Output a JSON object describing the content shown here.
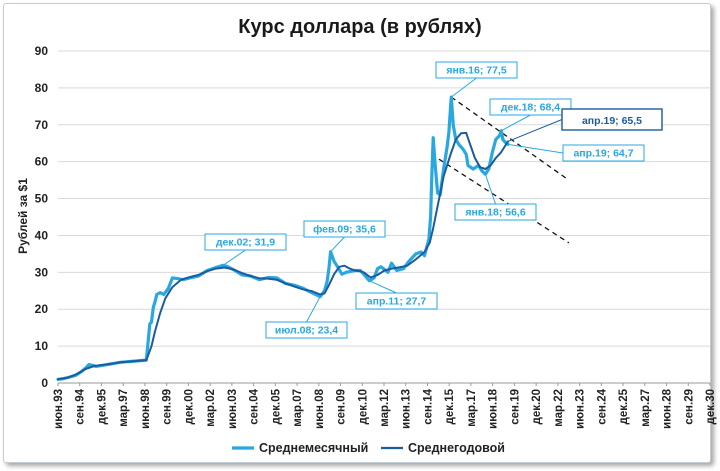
{
  "chart_data": {
    "type": "line",
    "title": "Курс доллара (в рублях)",
    "ylabel": "Рублей за $1",
    "xlabel": "",
    "ylim": [
      0,
      90
    ],
    "yticks": [
      "0",
      "10",
      "20",
      "30",
      "40",
      "50",
      "60",
      "70",
      "80",
      "90"
    ],
    "grid": "horizontal",
    "legend_placement": "bottom",
    "xticks": [
      "июн.93",
      "сен.94",
      "дек.95",
      "мар.97",
      "июн.98",
      "сен.99",
      "дек.00",
      "мар.02",
      "июн.03",
      "сен.04",
      "дек.05",
      "мар.07",
      "июн.08",
      "сен.09",
      "дек.10",
      "мар.12",
      "июн.13",
      "сен.14",
      "дек.15",
      "мар.17",
      "июн.18",
      "сен.19",
      "дек.20",
      "мар.22",
      "июн.23",
      "сен.24",
      "дек.25",
      "мар.27",
      "июн.28",
      "сен.29",
      "дек.30"
    ],
    "series": [
      {
        "name": "Среднемесячный",
        "color": "#29a8e0",
        "points": [
          [
            1993.42,
            1.0
          ],
          [
            1993.75,
            1.2
          ],
          [
            1994.0,
            1.5
          ],
          [
            1994.4,
            2.0
          ],
          [
            1994.75,
            3.0
          ],
          [
            1995.0,
            4.0
          ],
          [
            1995.2,
            5.0
          ],
          [
            1995.4,
            4.8
          ],
          [
            1995.6,
            4.5
          ],
          [
            1996.0,
            4.8
          ],
          [
            1996.5,
            5.2
          ],
          [
            1997.0,
            5.6
          ],
          [
            1997.5,
            5.8
          ],
          [
            1998.0,
            6.0
          ],
          [
            1998.5,
            6.2
          ],
          [
            1998.62,
            12.0
          ],
          [
            1998.7,
            16.0
          ],
          [
            1998.8,
            16.5
          ],
          [
            1998.9,
            20.5
          ],
          [
            1999.0,
            22.0
          ],
          [
            1999.1,
            24.0
          ],
          [
            1999.3,
            24.5
          ],
          [
            1999.5,
            24.0
          ],
          [
            1999.75,
            25.5
          ],
          [
            2000.0,
            28.5
          ],
          [
            2000.3,
            28.3
          ],
          [
            2000.6,
            28.0
          ],
          [
            2001.0,
            28.5
          ],
          [
            2001.5,
            29.0
          ],
          [
            2002.0,
            30.5
          ],
          [
            2002.5,
            31.3
          ],
          [
            2002.92,
            31.9
          ],
          [
            2003.2,
            31.5
          ],
          [
            2003.6,
            30.5
          ],
          [
            2004.0,
            29.3
          ],
          [
            2004.5,
            29.0
          ],
          [
            2005.0,
            28.0
          ],
          [
            2005.5,
            28.6
          ],
          [
            2006.0,
            28.5
          ],
          [
            2006.5,
            27.0
          ],
          [
            2007.0,
            26.5
          ],
          [
            2007.5,
            25.7
          ],
          [
            2008.0,
            24.5
          ],
          [
            2008.5,
            23.4
          ],
          [
            2008.75,
            25.0
          ],
          [
            2008.9,
            27.5
          ],
          [
            2009.0,
            31.0
          ],
          [
            2009.1,
            35.6
          ],
          [
            2009.3,
            33.0
          ],
          [
            2009.5,
            31.5
          ],
          [
            2009.75,
            29.5
          ],
          [
            2010.0,
            30.0
          ],
          [
            2010.5,
            30.5
          ],
          [
            2010.8,
            30.5
          ],
          [
            2011.0,
            29.5
          ],
          [
            2011.33,
            27.7
          ],
          [
            2011.6,
            28.5
          ],
          [
            2011.8,
            31.0
          ],
          [
            2012.0,
            31.5
          ],
          [
            2012.4,
            30.0
          ],
          [
            2012.6,
            32.5
          ],
          [
            2012.9,
            30.5
          ],
          [
            2013.3,
            31.0
          ],
          [
            2013.6,
            33.0
          ],
          [
            2014.0,
            35.0
          ],
          [
            2014.3,
            35.5
          ],
          [
            2014.5,
            34.5
          ],
          [
            2014.75,
            39.0
          ],
          [
            2014.85,
            45.0
          ],
          [
            2014.92,
            56.0
          ],
          [
            2015.0,
            66.5
          ],
          [
            2015.1,
            60.0
          ],
          [
            2015.25,
            51.5
          ],
          [
            2015.4,
            51.0
          ],
          [
            2015.6,
            58.0
          ],
          [
            2015.8,
            64.0
          ],
          [
            2015.9,
            68.0
          ],
          [
            2016.0,
            75.0
          ],
          [
            2016.04,
            77.5
          ],
          [
            2016.15,
            70.0
          ],
          [
            2016.3,
            66.0
          ],
          [
            2016.5,
            64.5
          ],
          [
            2016.7,
            63.5
          ],
          [
            2016.9,
            62.0
          ],
          [
            2017.0,
            59.0
          ],
          [
            2017.3,
            58.0
          ],
          [
            2017.6,
            59.0
          ],
          [
            2017.8,
            57.5
          ],
          [
            2018.0,
            56.6
          ],
          [
            2018.2,
            58.0
          ],
          [
            2018.4,
            62.5
          ],
          [
            2018.6,
            66.0
          ],
          [
            2018.8,
            67.0
          ],
          [
            2018.92,
            68.4
          ],
          [
            2019.0,
            66.0
          ],
          [
            2019.2,
            65.0
          ],
          [
            2019.3,
            64.7
          ]
        ]
      },
      {
        "name": "Среднегодовой",
        "color": "#1a5c9e",
        "points": [
          [
            1993.42,
            1.0
          ],
          [
            1994.0,
            1.5
          ],
          [
            1994.5,
            2.4
          ],
          [
            1995.0,
            3.8
          ],
          [
            1995.5,
            4.6
          ],
          [
            1996.0,
            4.9
          ],
          [
            1996.5,
            5.2
          ],
          [
            1997.0,
            5.6
          ],
          [
            1997.5,
            5.8
          ],
          [
            1998.0,
            6.0
          ],
          [
            1998.5,
            6.2
          ],
          [
            1998.8,
            10.0
          ],
          [
            1999.0,
            14.0
          ],
          [
            1999.3,
            19.0
          ],
          [
            1999.6,
            23.0
          ],
          [
            2000.0,
            26.0
          ],
          [
            2000.5,
            28.0
          ],
          [
            2001.0,
            28.7
          ],
          [
            2001.5,
            29.3
          ],
          [
            2002.0,
            30.3
          ],
          [
            2002.5,
            31.0
          ],
          [
            2003.0,
            31.3
          ],
          [
            2003.5,
            30.8
          ],
          [
            2004.0,
            29.8
          ],
          [
            2004.5,
            29.0
          ],
          [
            2005.0,
            28.4
          ],
          [
            2005.5,
            28.3
          ],
          [
            2006.0,
            28.0
          ],
          [
            2006.5,
            27.0
          ],
          [
            2007.0,
            26.2
          ],
          [
            2007.5,
            25.4
          ],
          [
            2008.0,
            24.9
          ],
          [
            2008.5,
            24.0
          ],
          [
            2008.75,
            24.3
          ],
          [
            2009.0,
            26.5
          ],
          [
            2009.3,
            29.5
          ],
          [
            2009.6,
            31.5
          ],
          [
            2009.9,
            31.8
          ],
          [
            2010.2,
            31.0
          ],
          [
            2010.5,
            30.5
          ],
          [
            2010.8,
            30.3
          ],
          [
            2011.0,
            30.0
          ],
          [
            2011.4,
            28.6
          ],
          [
            2011.8,
            29.3
          ],
          [
            2012.2,
            30.5
          ],
          [
            2012.6,
            31.0
          ],
          [
            2013.0,
            31.3
          ],
          [
            2013.5,
            31.8
          ],
          [
            2014.0,
            33.5
          ],
          [
            2014.5,
            35.5
          ],
          [
            2014.8,
            38.0
          ],
          [
            2015.0,
            42.0
          ],
          [
            2015.3,
            49.0
          ],
          [
            2015.6,
            56.0
          ],
          [
            2016.0,
            62.0
          ],
          [
            2016.3,
            66.0
          ],
          [
            2016.6,
            67.7
          ],
          [
            2016.9,
            67.8
          ],
          [
            2017.1,
            65.0
          ],
          [
            2017.4,
            61.0
          ],
          [
            2017.7,
            58.5
          ],
          [
            2018.0,
            58.0
          ],
          [
            2018.3,
            59.0
          ],
          [
            2018.6,
            61.0
          ],
          [
            2018.9,
            62.5
          ],
          [
            2019.1,
            64.0
          ],
          [
            2019.3,
            65.5
          ]
        ]
      }
    ],
    "trendlines": [
      {
        "from": [
          2016.04,
          77.5
        ],
        "to": [
          2022.8,
          55.0
        ]
      },
      {
        "from": [
          2014.9,
          62.0
        ],
        "to": [
          2022.8,
          38.0
        ]
      }
    ],
    "annotations": [
      {
        "id": "dec02",
        "text": "дек.02; 31,9",
        "x": 2002.92,
        "y": 31.9,
        "emphasis": false
      },
      {
        "id": "jul08",
        "text": "июл.08; 23,4",
        "x": 2008.5,
        "y": 23.4,
        "emphasis": false
      },
      {
        "id": "feb09",
        "text": "фев.09; 35,6",
        "x": 2009.1,
        "y": 35.6,
        "emphasis": false
      },
      {
        "id": "apr11",
        "text": "апр.11; 27,7",
        "x": 2011.33,
        "y": 27.7,
        "emphasis": false
      },
      {
        "id": "jan16",
        "text": "янв.16; 77,5",
        "x": 2016.04,
        "y": 77.5,
        "emphasis": false
      },
      {
        "id": "dec18",
        "text": "дек.18; 68,4",
        "x": 2018.92,
        "y": 68.4,
        "emphasis": false
      },
      {
        "id": "jan18",
        "text": "янв.18; 56,6",
        "x": 2018.0,
        "y": 56.6,
        "emphasis": false
      },
      {
        "id": "apr19a",
        "text": "апр.19; 65,5",
        "x": 2019.3,
        "y": 65.5,
        "emphasis": true
      },
      {
        "id": "apr19m",
        "text": "апр.19; 64,7",
        "x": 2019.3,
        "y": 64.7,
        "emphasis": false
      }
    ]
  }
}
